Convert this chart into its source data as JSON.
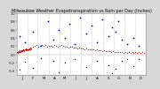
{
  "title": "Milwaukee Weather Evapotranspiration vs Rain per Day (Inches)",
  "title_fontsize": 3.5,
  "bg_color": "#d8d8d8",
  "plot_bg": "#ffffff",
  "et_color": "#dd0000",
  "rain_color": "#0000dd",
  "diff_color": "#000000",
  "marker_size": 0.8,
  "ylim": [
    -0.5,
    1.0
  ],
  "xlim": [
    0,
    365
  ],
  "vline_color": "#999999",
  "vline_style": ":",
  "et_data_x": [
    1,
    2,
    3,
    4,
    5,
    6,
    7,
    8,
    9,
    10,
    11,
    12,
    13,
    14,
    15,
    16,
    17,
    18,
    19,
    20,
    21,
    22,
    23,
    24,
    25,
    26,
    27,
    28,
    29,
    30,
    31,
    32,
    33,
    34,
    35,
    36,
    37,
    38,
    39,
    40,
    45,
    50,
    55,
    60,
    65,
    70,
    75,
    80,
    85,
    90,
    95,
    100,
    105,
    110,
    115,
    120,
    125,
    130,
    135,
    140,
    145,
    150,
    155,
    160,
    165,
    170,
    175,
    180,
    185,
    190,
    195,
    200,
    205,
    210,
    215,
    220,
    225,
    230,
    235,
    240,
    245,
    250,
    255,
    260,
    265,
    270,
    275,
    280,
    285,
    290,
    295,
    300,
    305,
    310,
    315,
    320,
    325,
    330,
    335,
    340,
    345,
    350,
    355,
    360
  ],
  "et_data_y": [
    0.05,
    0.06,
    0.04,
    0.07,
    0.05,
    0.08,
    0.06,
    0.09,
    0.07,
    0.08,
    0.06,
    0.07,
    0.09,
    0.08,
    0.1,
    0.07,
    0.09,
    0.11,
    0.08,
    0.1,
    0.09,
    0.11,
    0.13,
    0.1,
    0.12,
    0.14,
    0.11,
    0.13,
    0.12,
    0.1,
    0.09,
    0.11,
    0.13,
    0.15,
    0.12,
    0.14,
    0.16,
    0.13,
    0.15,
    0.14,
    0.18,
    0.2,
    0.22,
    0.19,
    0.21,
    0.23,
    0.2,
    0.22,
    0.19,
    0.21,
    0.2,
    0.18,
    0.22,
    0.2,
    0.19,
    0.21,
    0.22,
    0.2,
    0.18,
    0.19,
    0.17,
    0.19,
    0.18,
    0.16,
    0.17,
    0.15,
    0.16,
    0.14,
    0.15,
    0.13,
    0.14,
    0.12,
    0.13,
    0.11,
    0.12,
    0.1,
    0.11,
    0.09,
    0.1,
    0.08,
    0.09,
    0.08,
    0.07,
    0.08,
    0.06,
    0.07,
    0.06,
    0.05,
    0.06,
    0.05,
    0.05,
    0.04,
    0.05,
    0.04,
    0.05,
    0.04,
    0.05,
    0.04,
    0.05,
    0.04,
    0.05,
    0.04,
    0.05,
    0.04
  ],
  "rain_data_x": [
    8,
    22,
    45,
    68,
    88,
    102,
    118,
    135,
    148,
    162,
    178,
    195,
    210,
    225,
    242,
    258,
    268,
    278,
    285,
    295,
    312,
    328,
    345
  ],
  "rain_data_y": [
    0.45,
    0.3,
    0.55,
    0.2,
    0.8,
    0.35,
    0.6,
    0.4,
    0.75,
    0.25,
    0.9,
    0.5,
    0.7,
    0.3,
    0.85,
    0.45,
    0.65,
    0.55,
    0.8,
    0.35,
    0.25,
    0.4,
    0.2
  ],
  "diff_data_x": [
    8,
    22,
    45,
    68,
    88,
    102,
    118,
    135,
    148,
    162,
    178,
    195,
    210,
    225,
    242,
    258,
    268,
    278,
    285,
    295,
    312,
    328,
    345
  ],
  "diff_data_y": [
    -0.37,
    -0.19,
    -0.32,
    -0.09,
    -0.58,
    -0.15,
    -0.44,
    -0.2,
    -0.53,
    -0.11,
    -0.68,
    -0.3,
    -0.52,
    -0.15,
    -0.65,
    -0.26,
    -0.46,
    -0.35,
    -0.61,
    -0.16,
    -0.12,
    -0.28,
    -0.12
  ],
  "vline_positions": [
    31,
    59,
    90,
    120,
    151,
    181,
    212,
    243,
    273,
    304,
    334
  ],
  "x_tick_positions": [
    15,
    45,
    75,
    105,
    135,
    165,
    196,
    227,
    258,
    288,
    319,
    349
  ],
  "x_tick_labels": [
    "J",
    "F",
    "M",
    "A",
    "M",
    "J",
    "J",
    "A",
    "S",
    "O",
    "N",
    "D"
  ]
}
